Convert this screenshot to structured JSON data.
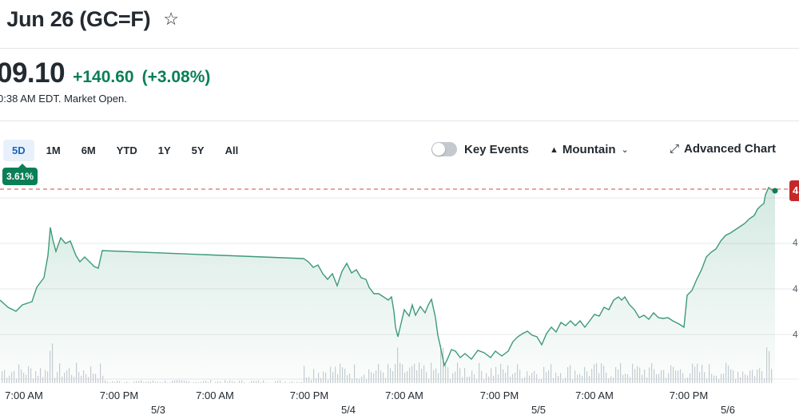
{
  "header": {
    "title": "l Jun 26 (GC=F)",
    "star_icon": "star-icon"
  },
  "quote": {
    "price": "09.10",
    "change": "+140.60",
    "change_pct": "(+3.08%)",
    "time_note": "0:38 AM EDT. Market Open."
  },
  "ranges": [
    "5D",
    "1M",
    "6M",
    "YTD",
    "1Y",
    "5Y",
    "All"
  ],
  "active_range": "5D",
  "range_change_badge": "3.61%",
  "controls": {
    "key_events_label": "Key Events",
    "chart_type_label": "Mountain",
    "advanced_chart_label": "Advanced Chart"
  },
  "price_flag": "4",
  "y_tick_labels": [
    "4",
    "4",
    "4"
  ],
  "colors": {
    "positive": "#0a7f57",
    "line": "#3d9a78",
    "flag": "#c62828",
    "active_range": "#1565c0"
  },
  "chart_data": {
    "type": "area",
    "x_tick_labels": [
      "7:00 AM",
      "7:00 PM",
      "7:00 AM",
      "7:00 PM",
      "7:00 AM",
      "7:00 PM",
      "7:00 AM",
      "7:00 PM"
    ],
    "day_labels": [
      "5/3",
      "5/4",
      "5/5",
      "5/6"
    ],
    "note": "",
    "grid": true
  }
}
